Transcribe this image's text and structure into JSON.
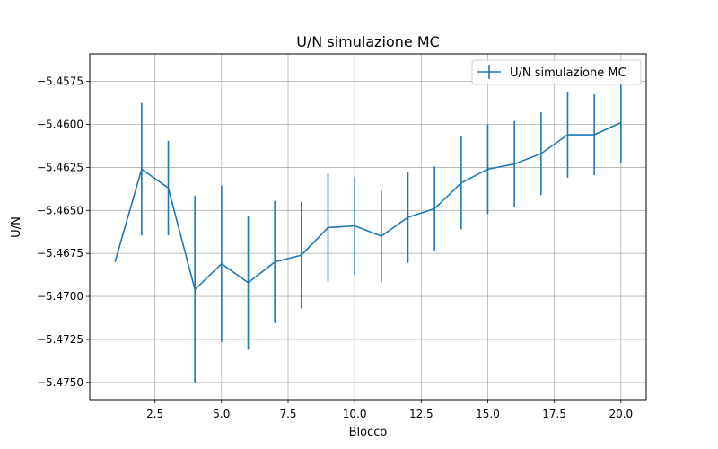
{
  "chart_data": {
    "type": "line",
    "title": "U/N simulazione MC",
    "xlabel": "Blocco",
    "ylabel": "U/N",
    "xlim": [
      0.05,
      20.95
    ],
    "ylim": [
      -5.476,
      -5.4559
    ],
    "grid": true,
    "legend_position": "top-right",
    "x_ticks": [
      2.5,
      5.0,
      7.5,
      10.0,
      12.5,
      15.0,
      17.5,
      20.0
    ],
    "x_tick_labels": [
      "2.5",
      "5.0",
      "7.5",
      "10.0",
      "12.5",
      "15.0",
      "17.5",
      "20.0"
    ],
    "y_ticks": [
      -5.4575,
      -5.46,
      -5.4625,
      -5.465,
      -5.4675,
      -5.47,
      -5.4725,
      -5.475
    ],
    "y_tick_labels": [
      "−5.4575",
      "−5.4600",
      "−5.4625",
      "−5.4650",
      "−5.4675",
      "−5.4700",
      "−5.4725",
      "−5.4750"
    ],
    "series": [
      {
        "name": "U/N simulazione MC",
        "color": "#1f77b4",
        "x": [
          1,
          2,
          3,
          4,
          5,
          6,
          7,
          8,
          9,
          10,
          11,
          12,
          13,
          14,
          15,
          16,
          17,
          18,
          19,
          20
        ],
        "y": [
          -5.468,
          -5.4626,
          -5.4637,
          -5.4696,
          -5.4681,
          -5.4692,
          -5.468,
          -5.4676,
          -5.466,
          -5.4659,
          -5.4665,
          -5.4654,
          -5.4649,
          -5.4634,
          -5.4626,
          -5.4623,
          -5.4617,
          -5.4606,
          -5.4606,
          -5.4599
        ],
        "yerr": [
          0,
          0.00385,
          0.00275,
          0.00545,
          0.00455,
          0.0039,
          0.00355,
          0.0031,
          0.00315,
          0.00285,
          0.00265,
          0.00265,
          0.00245,
          0.0027,
          0.0026,
          0.0025,
          0.0024,
          0.0025,
          0.00235,
          0.00235
        ]
      }
    ]
  }
}
